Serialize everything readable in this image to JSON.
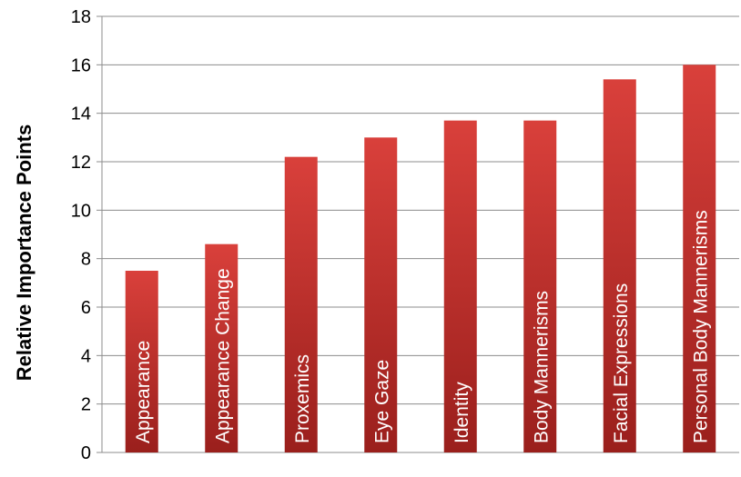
{
  "chart_data": {
    "type": "bar",
    "title": "",
    "xlabel": "",
    "ylabel": "Relative Importance Points",
    "categories": [
      "Appearance",
      "Appearance Change",
      "Proxemics",
      "Eye Gaze",
      "Identity",
      "Body Mannerisms",
      "Facial Expressions",
      "Personal Body Mannerisms"
    ],
    "values": [
      7.5,
      8.6,
      12.2,
      13.0,
      13.7,
      13.7,
      15.4,
      16.0
    ],
    "ylim": [
      0,
      18
    ],
    "yticks": [
      0,
      2,
      4,
      6,
      8,
      10,
      12,
      14,
      16,
      18
    ],
    "grid": true,
    "legend": "none",
    "bar_color_top": "#d9403b",
    "bar_color_bottom": "#9a1f1c",
    "label_placement": "inside-bar-vertical"
  }
}
